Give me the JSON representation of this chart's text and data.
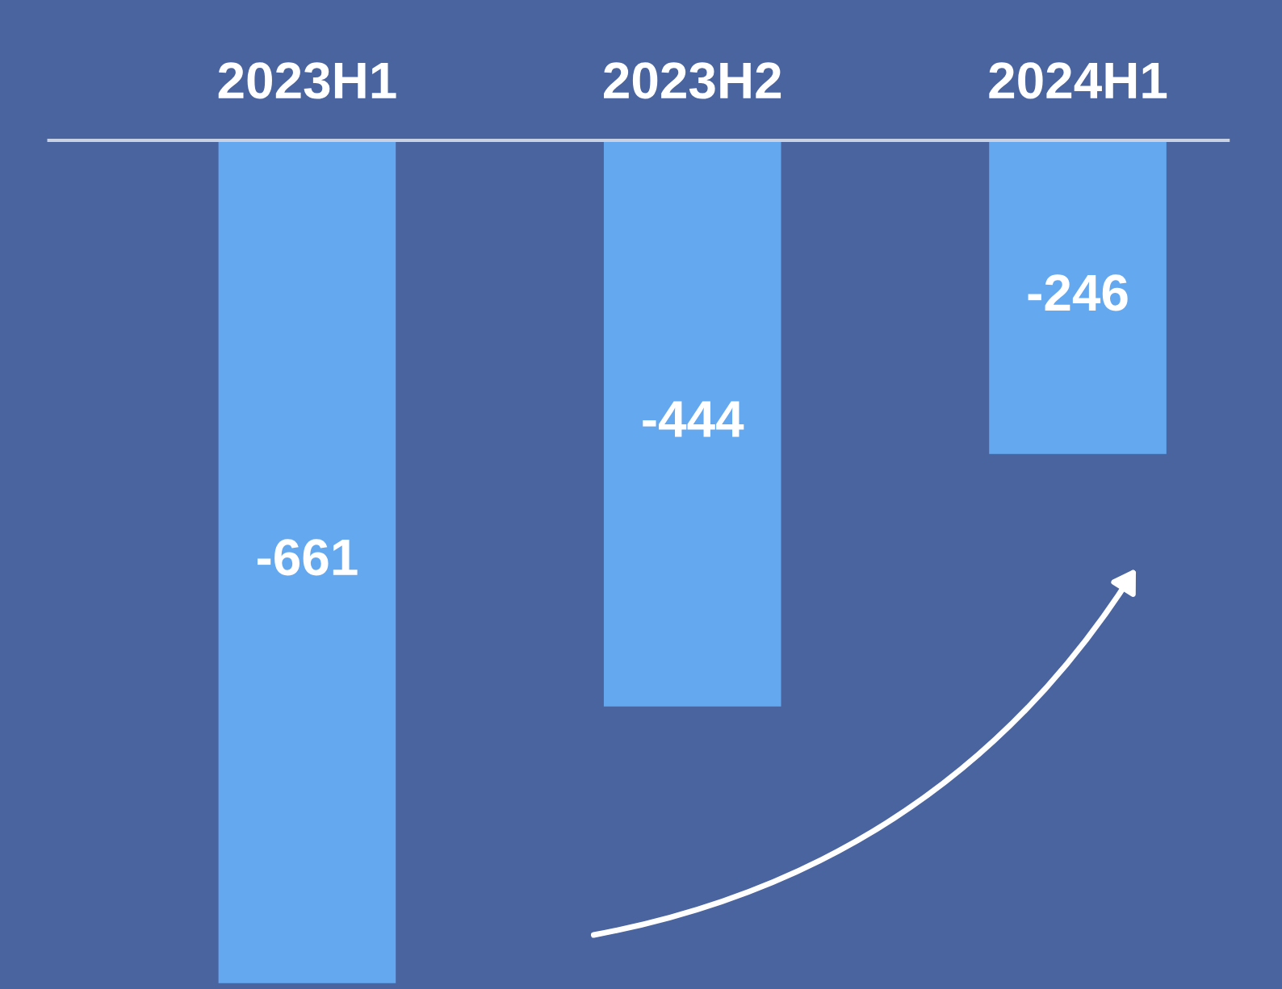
{
  "chart_data": {
    "type": "bar",
    "categories": [
      "2023H1",
      "2023H2",
      "2024H1"
    ],
    "values": [
      -661,
      -444,
      -246
    ],
    "color": "#64a8f0",
    "data_labels": true,
    "grid": false,
    "legend": false
  }
}
